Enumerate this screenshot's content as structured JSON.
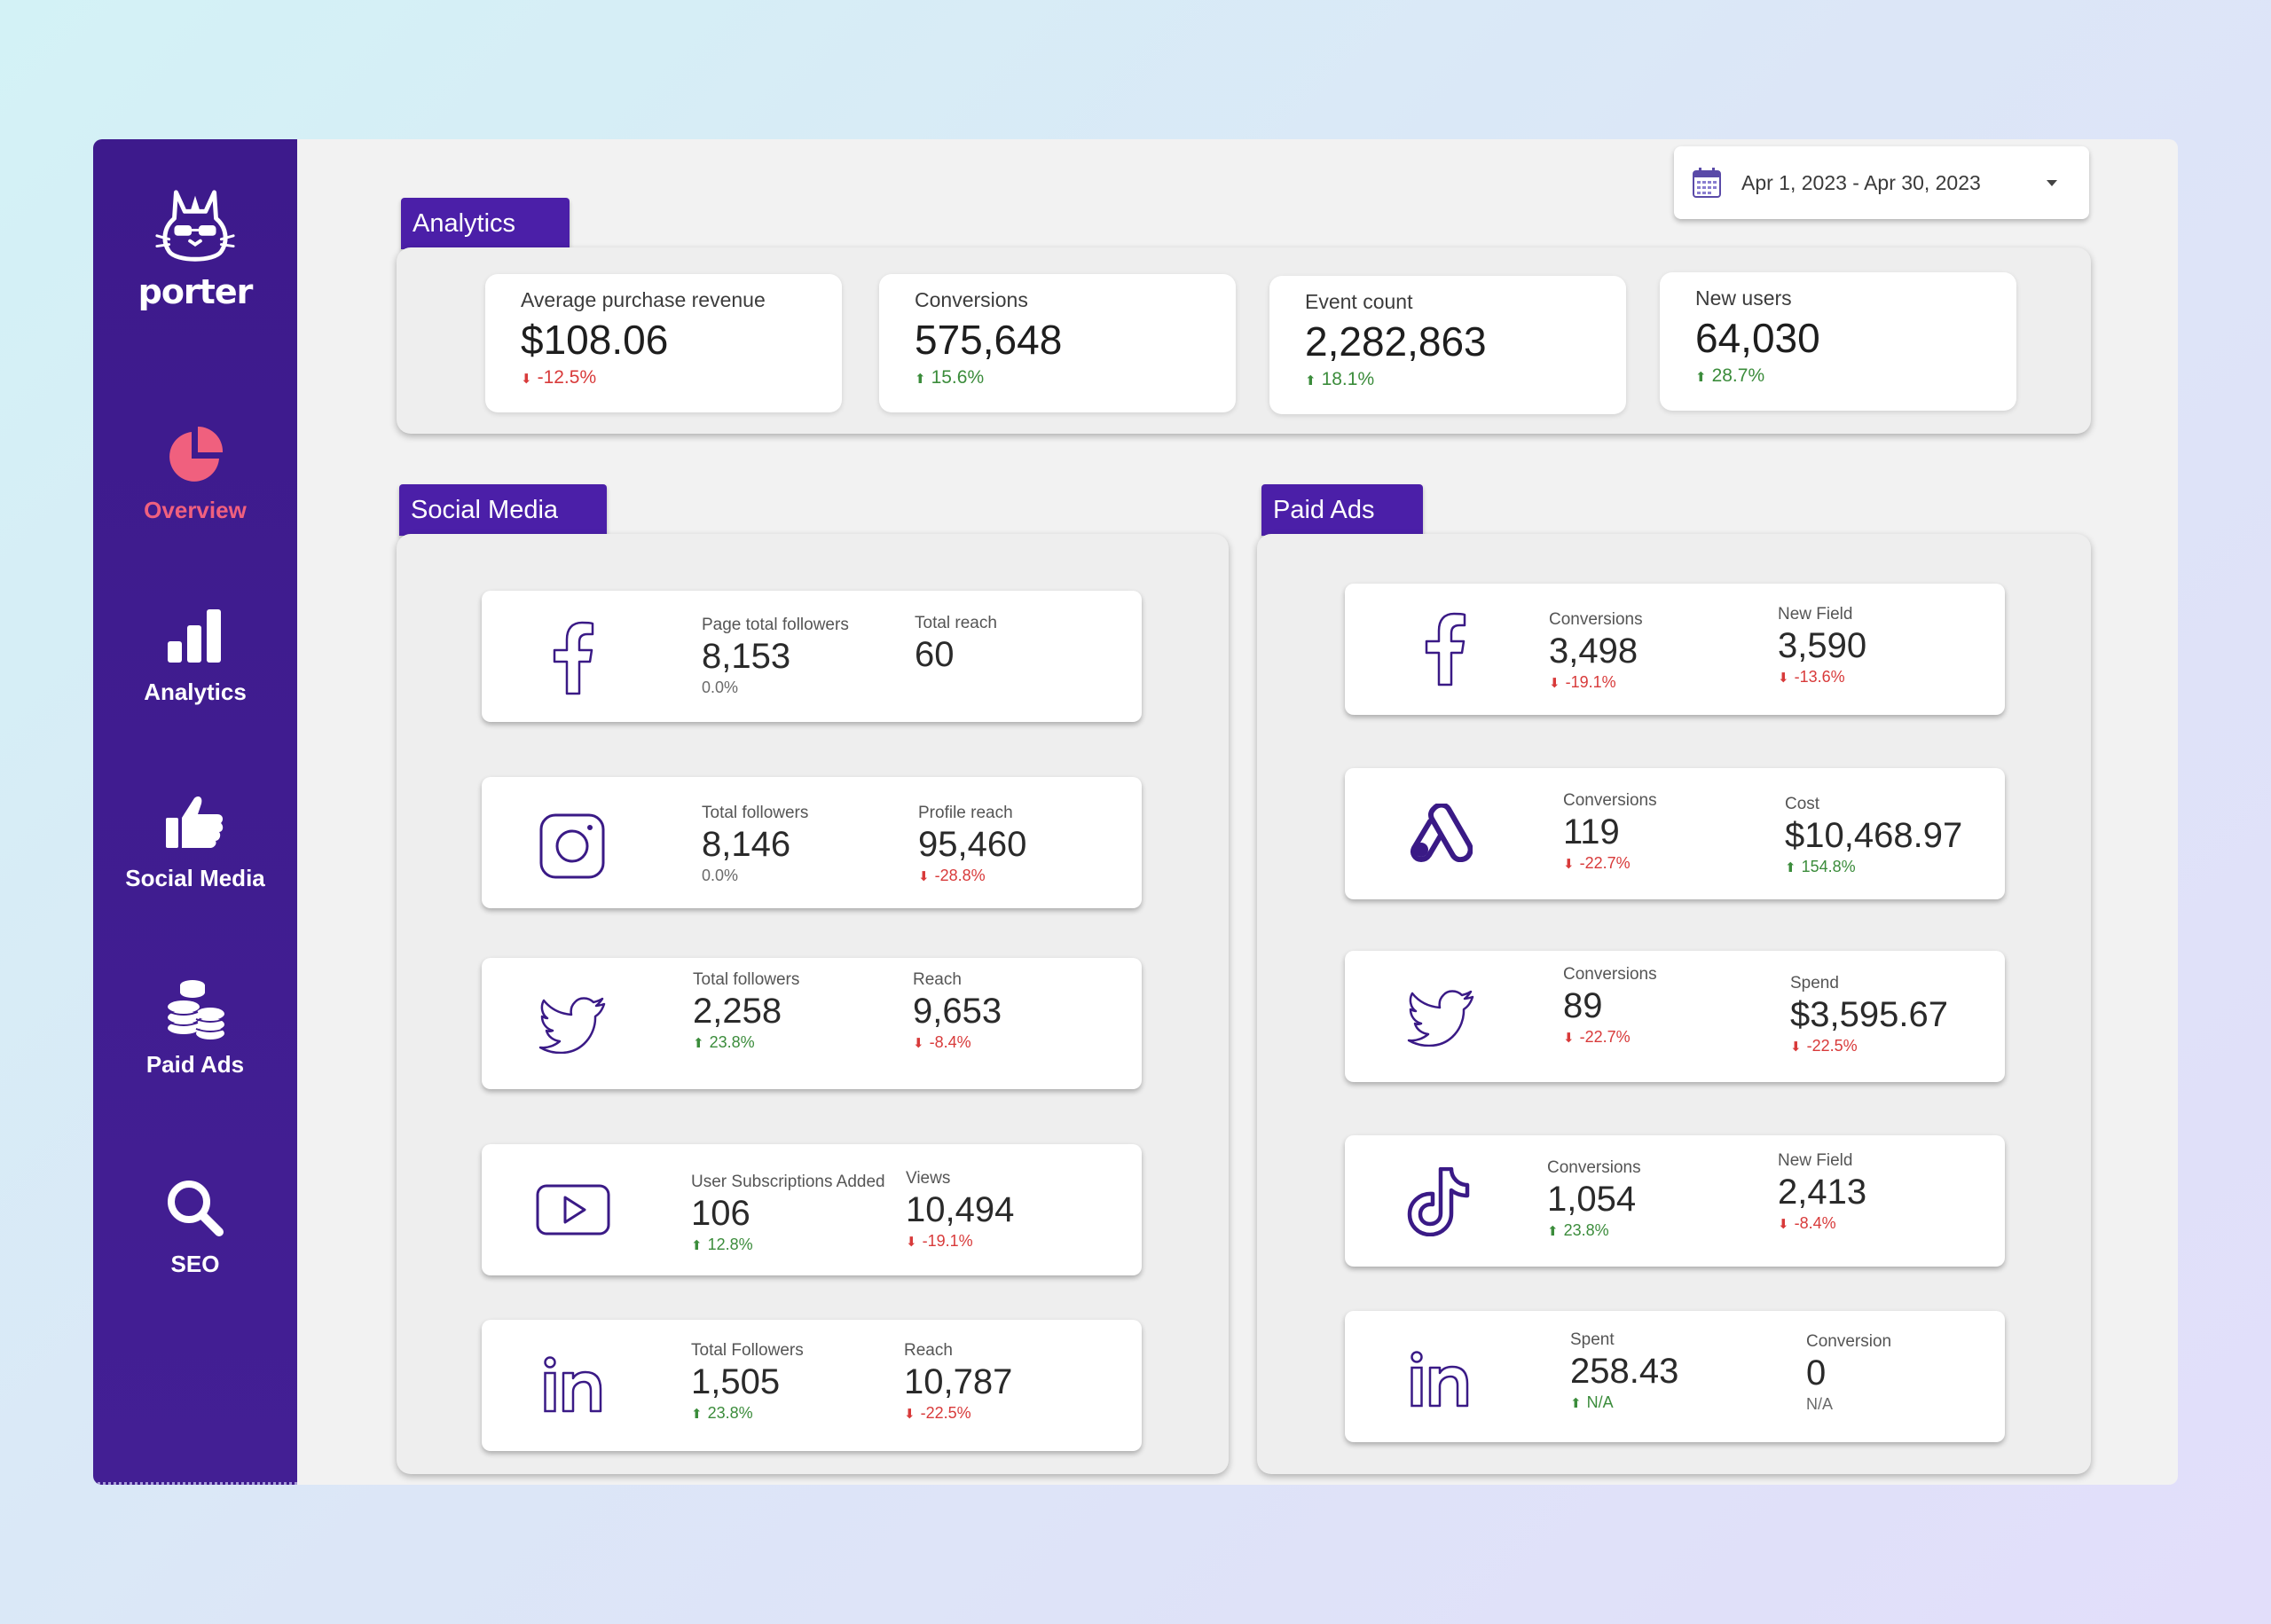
{
  "brand": {
    "name": "porter"
  },
  "sidebar": {
    "items": [
      {
        "label": "Overview",
        "icon": "pie-chart-icon",
        "active": true
      },
      {
        "label": "Analytics",
        "icon": "bar-chart-icon",
        "active": false
      },
      {
        "label": "Social Media",
        "icon": "thumbs-up-icon",
        "active": false
      },
      {
        "label": "Paid Ads",
        "icon": "coins-icon",
        "active": false
      },
      {
        "label": "SEO",
        "icon": "search-icon",
        "active": false
      }
    ]
  },
  "date_range": {
    "label": "Apr 1, 2023 - Apr 30, 2023"
  },
  "analytics": {
    "title": "Analytics",
    "kpis": [
      {
        "label": "Average purchase revenue",
        "value": "$108.06",
        "delta": "-12.5%",
        "trend": "down"
      },
      {
        "label": "Conversions",
        "value": "575,648",
        "delta": "15.6%",
        "trend": "up"
      },
      {
        "label": "Event count",
        "value": "2,282,863",
        "delta": "18.1%",
        "trend": "up"
      },
      {
        "label": "New users",
        "value": "64,030",
        "delta": "28.7%",
        "trend": "up"
      }
    ]
  },
  "social_media": {
    "title": "Social Media",
    "cards": [
      {
        "platform": "facebook",
        "icon": "facebook-icon",
        "m1": {
          "label": "Page total followers",
          "value": "8,153",
          "delta": "0.0%",
          "trend": "neutral"
        },
        "m2": {
          "label": "Total reach",
          "value": "60",
          "delta": "",
          "trend": "neutral"
        }
      },
      {
        "platform": "instagram",
        "icon": "instagram-icon",
        "m1": {
          "label": "Total followers",
          "value": "8,146",
          "delta": "0.0%",
          "trend": "neutral"
        },
        "m2": {
          "label": "Profile reach",
          "value": "95,460",
          "delta": "-28.8%",
          "trend": "down"
        }
      },
      {
        "platform": "twitter",
        "icon": "twitter-icon",
        "m1": {
          "label": "Total followers",
          "value": "2,258",
          "delta": "23.8%",
          "trend": "up"
        },
        "m2": {
          "label": "Reach",
          "value": "9,653",
          "delta": "-8.4%",
          "trend": "down"
        }
      },
      {
        "platform": "youtube",
        "icon": "youtube-icon",
        "m1": {
          "label": "User Subscriptions Added",
          "value": "106",
          "delta": "12.8%",
          "trend": "up"
        },
        "m2": {
          "label": "Views",
          "value": "10,494",
          "delta": "-19.1%",
          "trend": "down"
        }
      },
      {
        "platform": "linkedin",
        "icon": "linkedin-icon",
        "m1": {
          "label": "Total Followers",
          "value": "1,505",
          "delta": "23.8%",
          "trend": "up"
        },
        "m2": {
          "label": "Reach",
          "value": "10,787",
          "delta": "-22.5%",
          "trend": "down"
        }
      }
    ]
  },
  "paid_ads": {
    "title": "Paid Ads",
    "cards": [
      {
        "platform": "facebook",
        "icon": "facebook-icon",
        "m1": {
          "label": "Conversions",
          "value": "3,498",
          "delta": "-19.1%",
          "trend": "down"
        },
        "m2": {
          "label": "New Field",
          "value": "3,590",
          "delta": "-13.6%",
          "trend": "down"
        }
      },
      {
        "platform": "google-ads",
        "icon": "google-ads-icon",
        "m1": {
          "label": "Conversions",
          "value": "119",
          "delta": "-22.7%",
          "trend": "down"
        },
        "m2": {
          "label": "Cost",
          "value": "$10,468.97",
          "delta": "154.8%",
          "trend": "up"
        }
      },
      {
        "platform": "twitter",
        "icon": "twitter-icon",
        "m1": {
          "label": "Conversions",
          "value": "89",
          "delta": "-22.7%",
          "trend": "down"
        },
        "m2": {
          "label": "Spend",
          "value": "$3,595.67",
          "delta": "-22.5%",
          "trend": "down"
        }
      },
      {
        "platform": "tiktok",
        "icon": "tiktok-icon",
        "m1": {
          "label": "Conversions",
          "value": "1,054",
          "delta": "23.8%",
          "trend": "up"
        },
        "m2": {
          "label": "New Field",
          "value": "2,413",
          "delta": "-8.4%",
          "trend": "down"
        }
      },
      {
        "platform": "linkedin",
        "icon": "linkedin-icon",
        "m1": {
          "label": "Spent",
          "value": "258.43",
          "delta": "N/A",
          "trend": "up"
        },
        "m2": {
          "label": "Conversion",
          "value": "0",
          "delta": "N/A",
          "trend": "neutral"
        }
      }
    ]
  },
  "colors": {
    "sidebar": "#3d1a8c",
    "accent": "#4b1fa8",
    "active_nav": "#f0607e",
    "icon_stroke": "#3a1a86",
    "up": "#3b8c3b",
    "down": "#d83a3a"
  }
}
